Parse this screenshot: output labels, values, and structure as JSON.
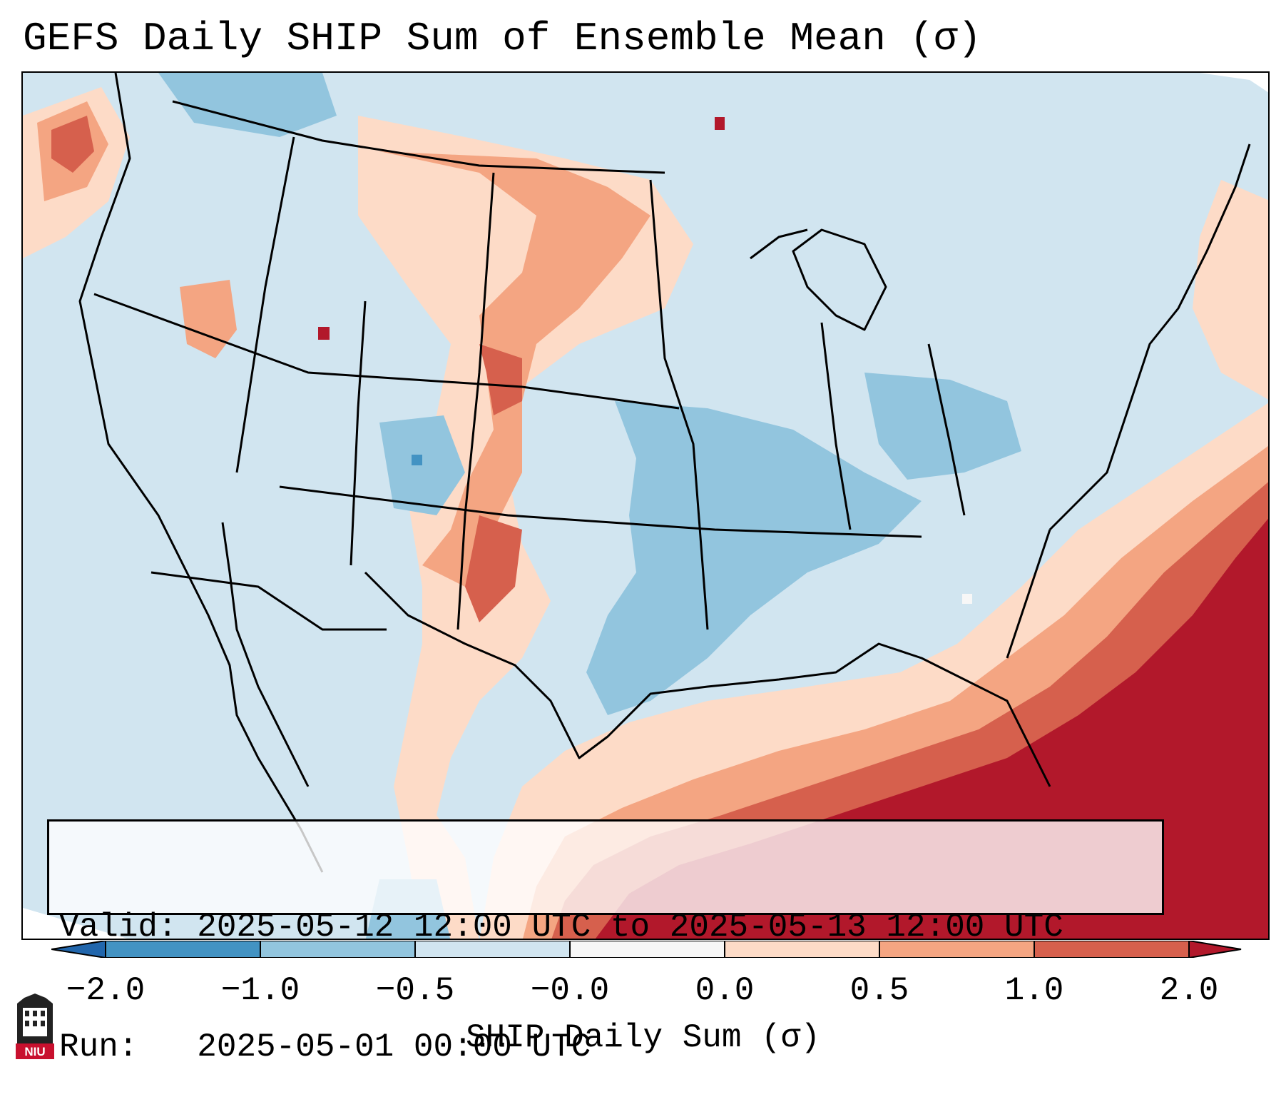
{
  "title": "GEFS Daily SHIP Sum of Ensemble Mean (σ)",
  "info": {
    "valid_line": "Valid: 2025-05-12 12:00 UTC to 2025-05-13 12:00 UTC",
    "run_line": "Run:   2025-05-01 00:00 UTC"
  },
  "colorbar": {
    "label": "SHIP Daily Sum (σ)",
    "ticks": [
      "−2.0",
      "−1.0",
      "−0.5",
      "−0.0",
      "0.0",
      "0.5",
      "1.0",
      "2.0"
    ],
    "bins": [
      {
        "range": "below -2.0",
        "color": "#2166ac"
      },
      {
        "range": "-2.0 to -1.0",
        "color": "#4393c3"
      },
      {
        "range": "-1.0 to -0.5",
        "color": "#92c5de"
      },
      {
        "range": "-0.5 to -0.0",
        "color": "#d1e5f0"
      },
      {
        "range": "-0.0 to 0.0",
        "color": "#f7f7f7"
      },
      {
        "range": "0.0 to 0.5",
        "color": "#fddbc7"
      },
      {
        "range": "0.5 to 1.0",
        "color": "#f4a582"
      },
      {
        "range": "1.0 to 2.0",
        "color": "#d6604d"
      },
      {
        "range": "above 2.0",
        "color": "#b2182b"
      }
    ]
  },
  "logo": {
    "icon": "niu-university-logo",
    "text": "NIU"
  }
}
